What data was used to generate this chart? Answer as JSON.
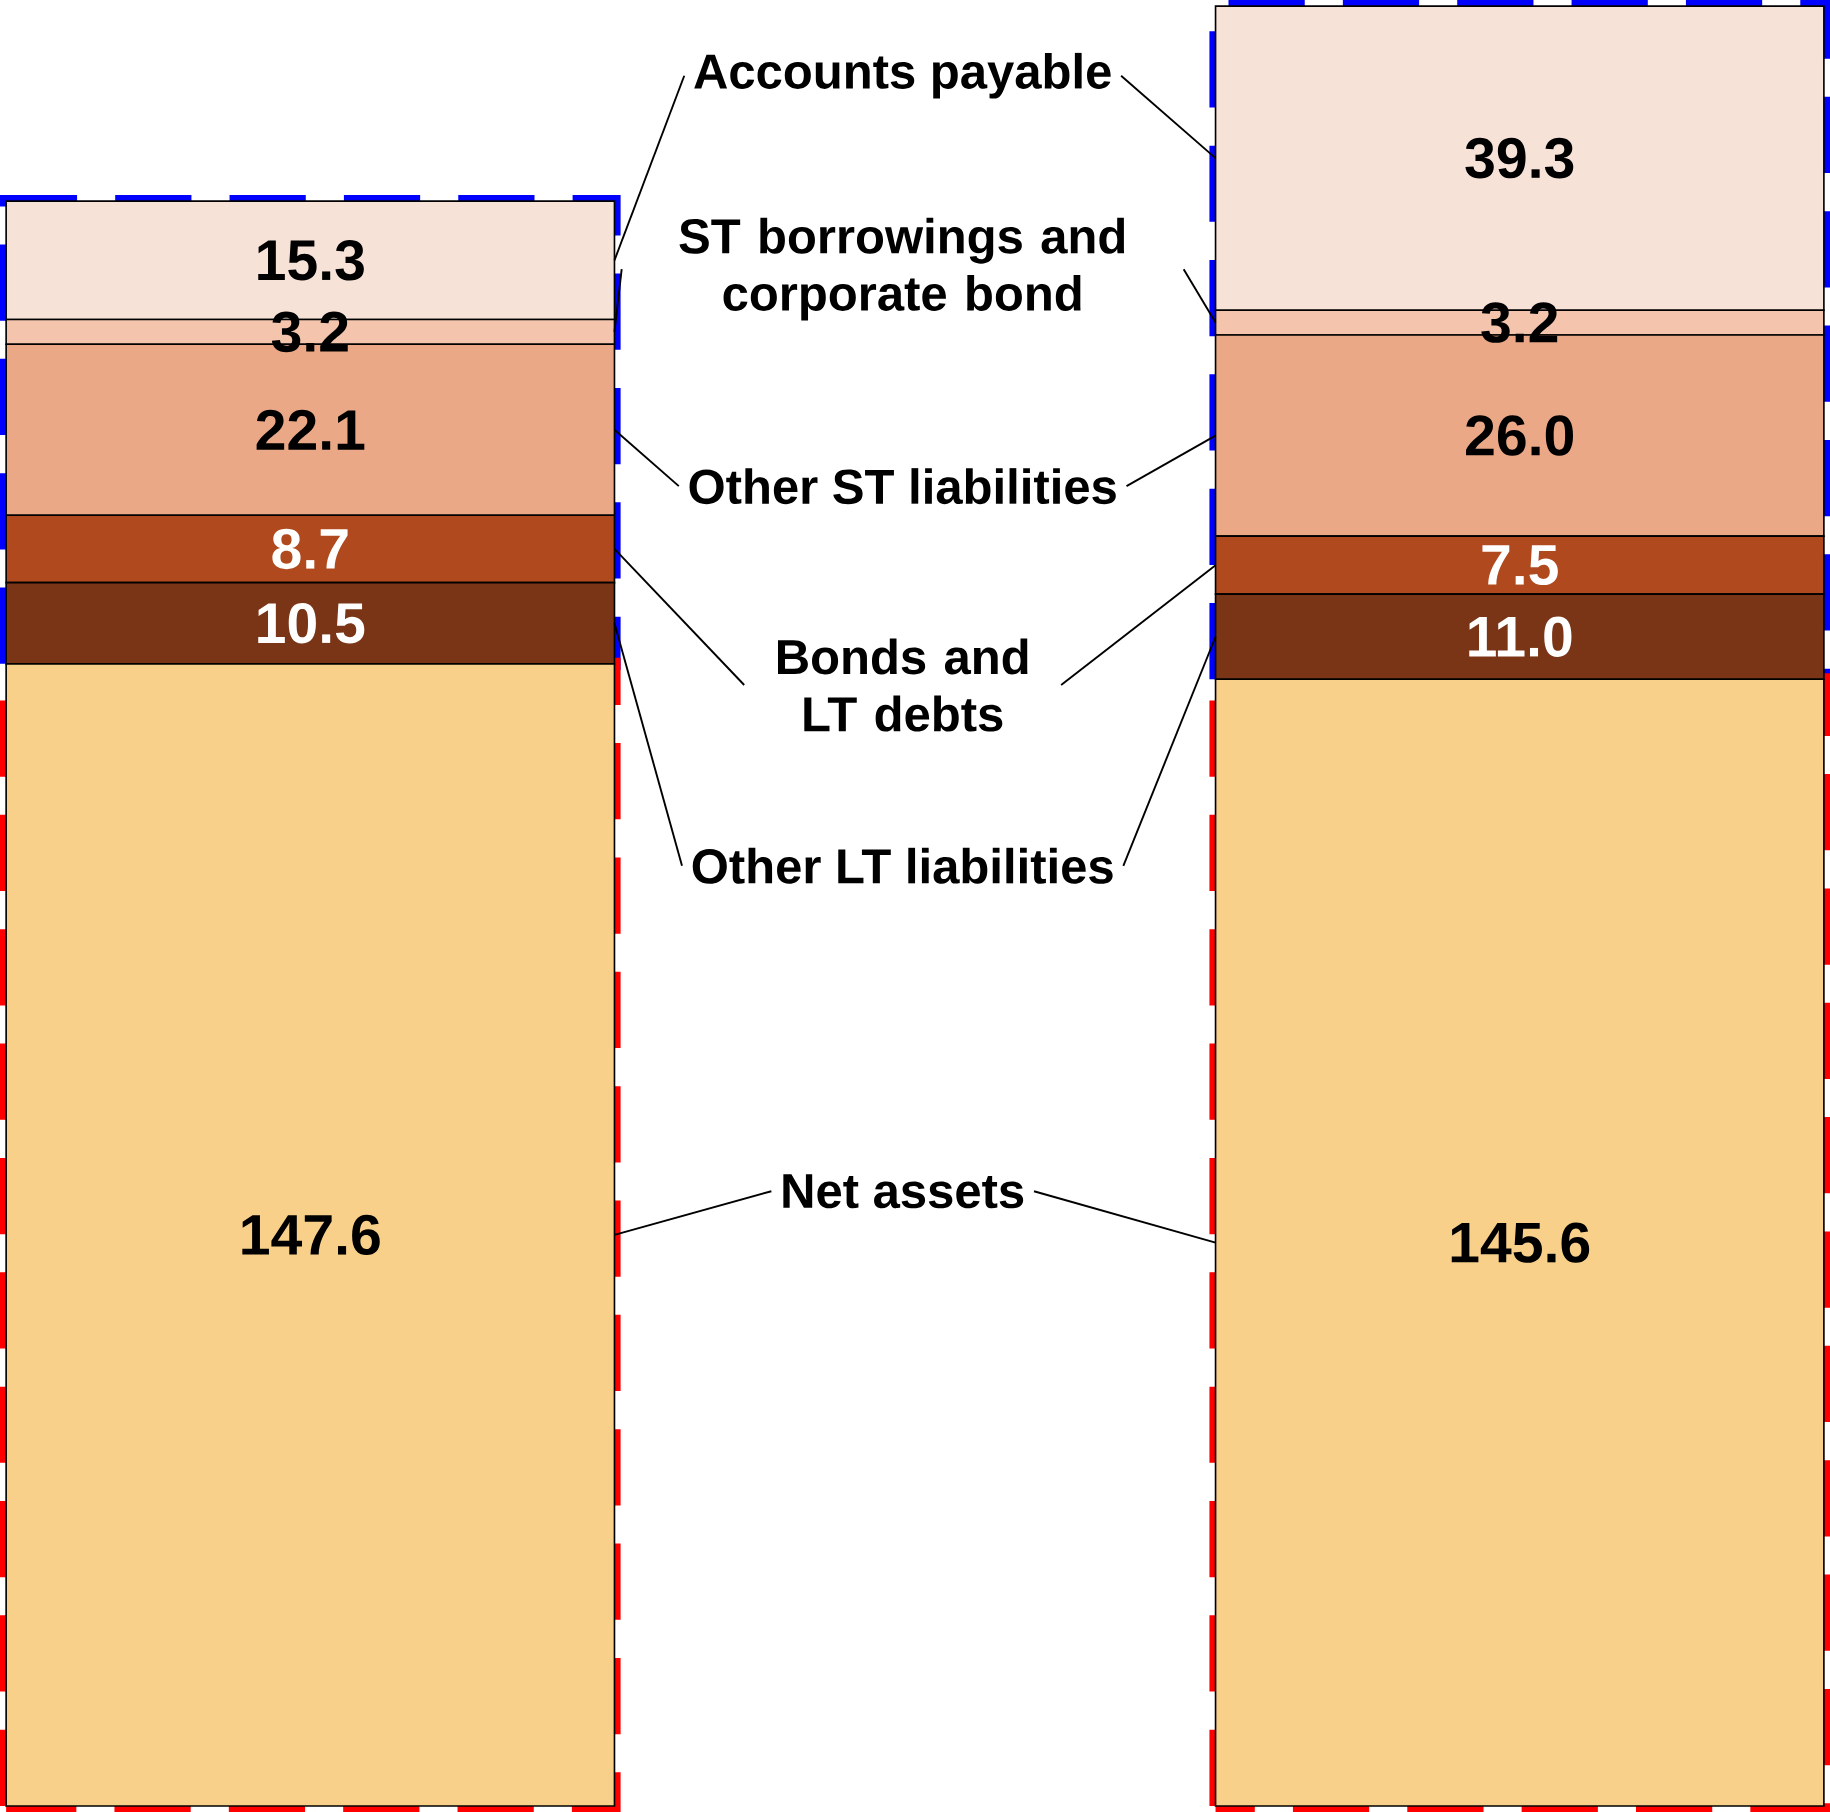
{
  "chart_data": {
    "type": "bar",
    "stacked": true,
    "categories": [
      null,
      null
    ],
    "data_labels": true,
    "legend": "center",
    "series": [
      {
        "name": "Net assets",
        "color": "#f8d08a",
        "values": [
          147.6,
          145.6
        ]
      },
      {
        "name": "Other LT liabilities",
        "color": "#7a3416",
        "values": [
          10.5,
          11.0
        ],
        "value_labels": [
          "10.5",
          "11.0"
        ]
      },
      {
        "name": "Bonds and LT debts",
        "color": "#b04a1e",
        "values": [
          8.7,
          7.5
        ]
      },
      {
        "name": "Other ST liabilities",
        "color": "#eba886",
        "values": [
          22.1,
          26.0
        ],
        "value_labels": [
          "22.1",
          "26.0"
        ]
      },
      {
        "name": "ST borrowings and corporate bond",
        "color": "#f4c4ac",
        "values": [
          3.2,
          3.2
        ]
      },
      {
        "name": "Accounts payable",
        "color": "#f7e2d8",
        "values": [
          15.3,
          39.3
        ]
      }
    ]
  }
}
